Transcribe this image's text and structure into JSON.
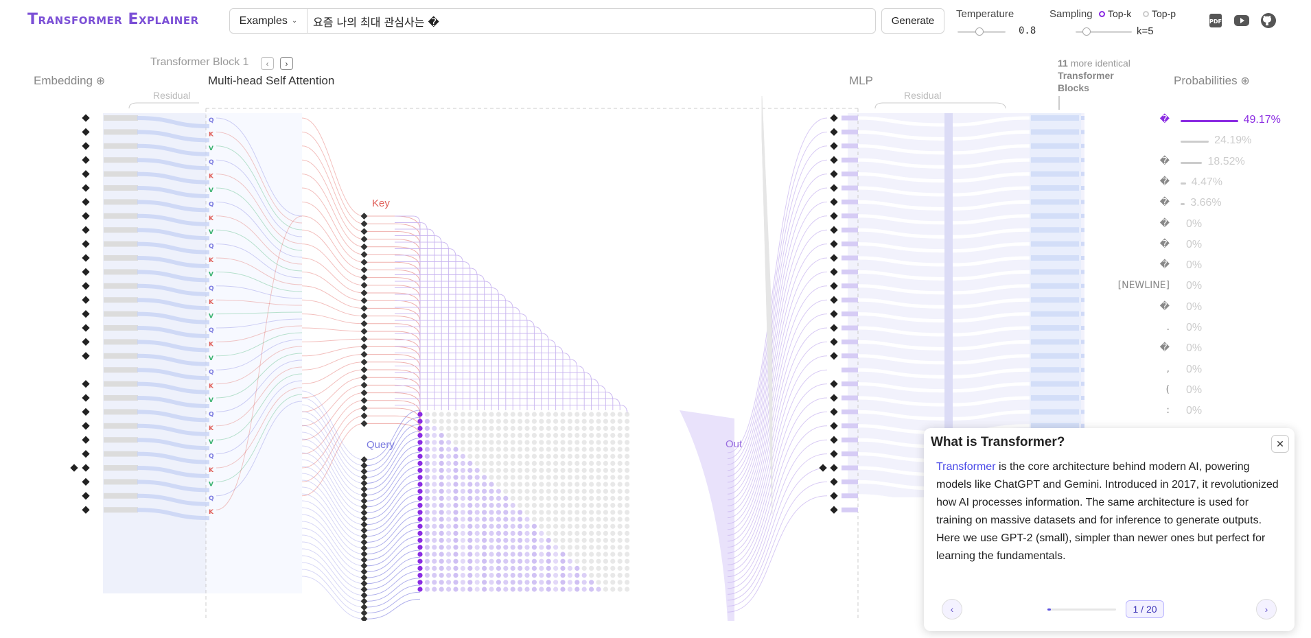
{
  "header": {
    "logo": "Transformer Explainer",
    "examples_label": "Examples",
    "prompt_value": "요즘 나의 최대 관심사는 �",
    "generate_label": "Generate",
    "temperature_label": "Temperature",
    "temperature_value": "0.8",
    "sampling_label": "Sampling",
    "topk_label": "Top-k",
    "topp_label": "Top-p",
    "k_value": "k=5",
    "icons": [
      "pdf-icon",
      "youtube-icon",
      "github-icon"
    ]
  },
  "sections": {
    "embedding": "Embedding",
    "transformer_block": "Transformer Block 1",
    "attention": "Multi-head Self Attention",
    "mlp": "MLP",
    "residual_left": "Residual",
    "residual_right": "Residual",
    "more_blocks_count": "11",
    "more_blocks_text": "more identical",
    "more_blocks_text2": "Transformer",
    "more_blocks_text3": "Blocks",
    "probabilities": "Probabilities",
    "key": "Key",
    "query": "Query",
    "out": "Out"
  },
  "tokens": {
    "count": 29,
    "glyph": "�"
  },
  "probabilities": [
    {
      "token": "�",
      "value": "49.17%",
      "fraction": 0.4917,
      "selected": true
    },
    {
      "token": "",
      "value": "24.19%",
      "fraction": 0.2419
    },
    {
      "token": "�",
      "value": "18.52%",
      "fraction": 0.1852
    },
    {
      "token": "�",
      "value": "4.47%",
      "fraction": 0.0447
    },
    {
      "token": "�",
      "value": "3.66%",
      "fraction": 0.0366
    },
    {
      "token": "�",
      "value": "0%",
      "fraction": 0
    },
    {
      "token": "�",
      "value": "0%",
      "fraction": 0
    },
    {
      "token": "�",
      "value": "0%",
      "fraction": 0
    },
    {
      "token": "[NEWLINE]",
      "value": "0%",
      "fraction": 0
    },
    {
      "token": "�",
      "value": "0%",
      "fraction": 0
    },
    {
      "token": ".",
      "value": "0%",
      "fraction": 0
    },
    {
      "token": "�",
      "value": "0%",
      "fraction": 0
    },
    {
      "token": ",",
      "value": "0%",
      "fraction": 0
    },
    {
      "token": "(",
      "value": "0%",
      "fraction": 0
    },
    {
      "token": ":",
      "value": "0%",
      "fraction": 0
    }
  ],
  "tooltip": {
    "title": "What is Transformer?",
    "close": "✕",
    "highlight": "Transformer",
    "body": " is the core architecture behind modern AI, powering models like ChatGPT and Gemini. Introduced in 2017, it revolutionized how AI processes information. The same architecture is used for training on massive datasets and for inference to generate outputs. Here we use GPT-2 (small), simpler than newer ones but perfect for learning the fundamentals.",
    "page": "1 / 20",
    "progress": 0.05,
    "prev": "‹",
    "next": "›"
  },
  "colors": {
    "accent": "#8a2be2",
    "logo": "#7b4fd6",
    "key": "#e0605a",
    "query": "#7b7be0",
    "value": "#3cb371",
    "attention": "#c8b4f0"
  }
}
